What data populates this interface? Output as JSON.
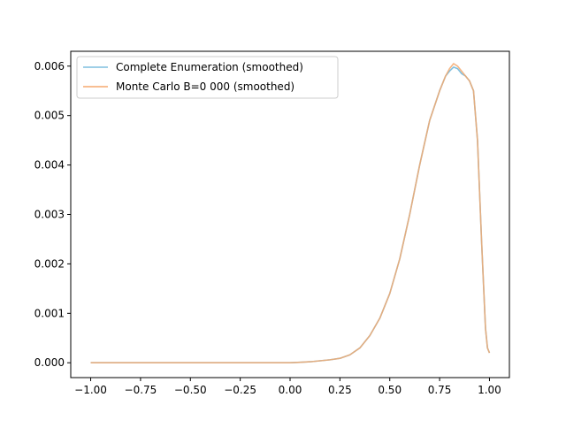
{
  "chart_data": {
    "type": "line",
    "title": "",
    "xlabel": "",
    "ylabel": "",
    "xlim": [
      -1.1,
      1.1
    ],
    "ylim": [
      -0.0003,
      0.0063
    ],
    "x_ticks": [
      -1.0,
      -0.75,
      -0.5,
      -0.25,
      0.0,
      0.25,
      0.5,
      0.75,
      1.0
    ],
    "x_tick_labels": [
      "−1.00",
      "−0.75",
      "−0.50",
      "−0.25",
      "0.00",
      "0.25",
      "0.50",
      "0.75",
      "1.00"
    ],
    "y_ticks": [
      0.0,
      0.001,
      0.002,
      0.003,
      0.004,
      0.005,
      0.006
    ],
    "y_tick_labels": [
      "0.000",
      "0.001",
      "0.002",
      "0.003",
      "0.004",
      "0.005",
      "0.006"
    ],
    "grid": false,
    "legend_position": "top-left",
    "series": [
      {
        "name": "Complete Enumeration (smoothed)",
        "color": "#7fbfdf",
        "x": [
          -1.0,
          -0.75,
          -0.5,
          -0.25,
          0.0,
          0.05,
          0.1,
          0.15,
          0.2,
          0.25,
          0.3,
          0.35,
          0.4,
          0.45,
          0.5,
          0.55,
          0.6,
          0.65,
          0.7,
          0.75,
          0.78,
          0.8,
          0.82,
          0.84,
          0.86,
          0.88,
          0.9,
          0.92,
          0.94,
          0.96,
          0.98,
          0.99,
          1.0
        ],
        "y": [
          0.0,
          0.0,
          0.0,
          0.0,
          0.0,
          1e-05,
          2e-05,
          4e-05,
          6e-05,
          9e-05,
          0.00016,
          0.0003,
          0.00055,
          0.0009,
          0.0014,
          0.0021,
          0.003,
          0.004,
          0.0049,
          0.0055,
          0.0058,
          0.0059,
          0.00598,
          0.00595,
          0.00585,
          0.0058,
          0.0057,
          0.0055,
          0.0045,
          0.0025,
          0.0007,
          0.0003,
          0.0002
        ]
      },
      {
        "name": "Monte Carlo B=0 000 (smoothed)",
        "color": "#f5a96e",
        "x": [
          -1.0,
          -0.75,
          -0.5,
          -0.25,
          0.0,
          0.05,
          0.1,
          0.15,
          0.2,
          0.25,
          0.3,
          0.35,
          0.4,
          0.45,
          0.5,
          0.55,
          0.6,
          0.65,
          0.7,
          0.75,
          0.78,
          0.8,
          0.82,
          0.84,
          0.86,
          0.88,
          0.9,
          0.92,
          0.94,
          0.96,
          0.98,
          0.99,
          1.0
        ],
        "y": [
          0.0,
          0.0,
          0.0,
          0.0,
          0.0,
          1e-05,
          2e-05,
          4e-05,
          6e-05,
          9e-05,
          0.00016,
          0.0003,
          0.00055,
          0.0009,
          0.0014,
          0.0021,
          0.003,
          0.004,
          0.0049,
          0.0055,
          0.0058,
          0.00595,
          0.00605,
          0.006,
          0.0059,
          0.0058,
          0.0057,
          0.0055,
          0.0045,
          0.0025,
          0.0007,
          0.0003,
          0.0002
        ]
      }
    ]
  }
}
